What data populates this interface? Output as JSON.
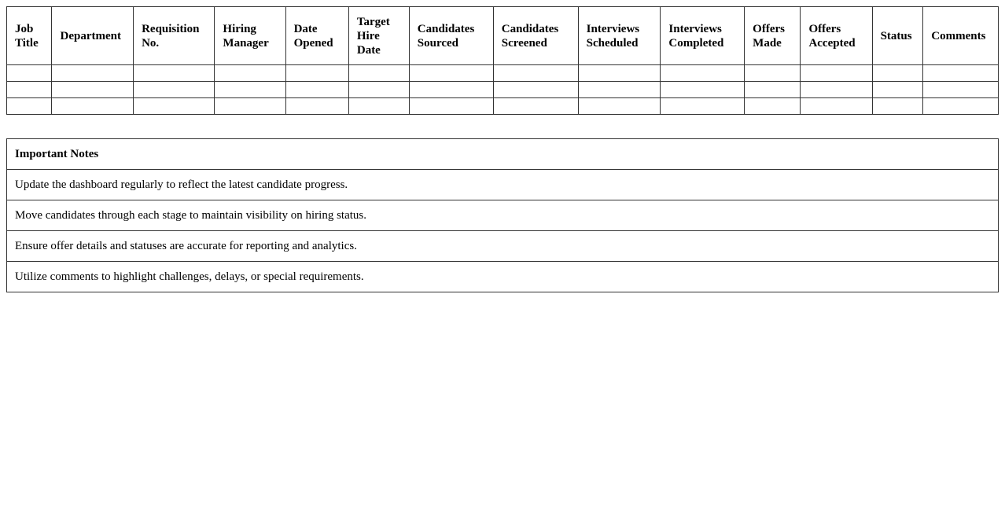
{
  "table": {
    "headers": [
      "Job Title",
      "Department",
      "Requisition No.",
      "Hiring Manager",
      "Date Opened",
      "Target Hire Date",
      "Candidates Sourced",
      "Candidates Screened",
      "Interviews Scheduled",
      "Interviews Completed",
      "Offers Made",
      "Offers Accepted",
      "Status",
      "Comments"
    ],
    "empty_rows": 3
  },
  "notes": {
    "title": "Important Notes",
    "items": [
      "Update the dashboard regularly to reflect the latest candidate progress.",
      "Move candidates through each stage to maintain visibility on hiring status.",
      "Ensure offer details and statuses are accurate for reporting and analytics.",
      "Utilize comments to highlight challenges, delays, or special requirements."
    ]
  }
}
